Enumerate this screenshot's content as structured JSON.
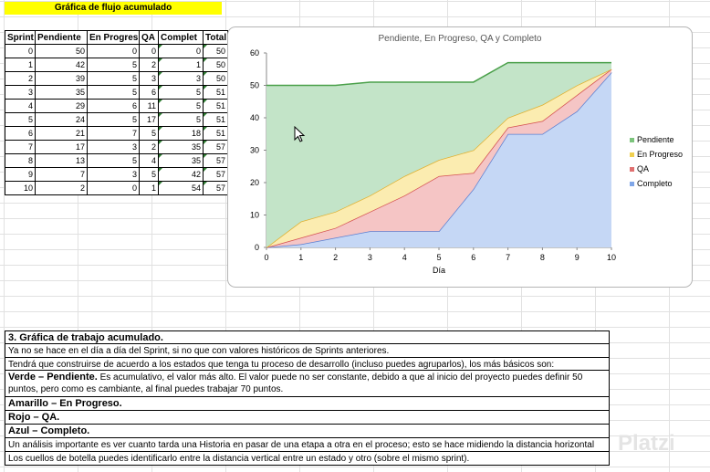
{
  "sheet_title": "Gráfica de flujo acumulado",
  "table": {
    "headers": [
      "Sprint",
      "Pendiente",
      "En Progres",
      "QA",
      "Complet",
      "Total"
    ],
    "rows": [
      [
        "0",
        "50",
        "0",
        "0",
        "0",
        "50"
      ],
      [
        "1",
        "42",
        "5",
        "2",
        "1",
        "50"
      ],
      [
        "2",
        "39",
        "5",
        "3",
        "3",
        "50"
      ],
      [
        "3",
        "35",
        "5",
        "6",
        "5",
        "51"
      ],
      [
        "4",
        "29",
        "6",
        "11",
        "5",
        "51"
      ],
      [
        "5",
        "24",
        "5",
        "17",
        "5",
        "51"
      ],
      [
        "6",
        "21",
        "7",
        "5",
        "18",
        "51"
      ],
      [
        "7",
        "17",
        "3",
        "2",
        "35",
        "57"
      ],
      [
        "8",
        "13",
        "5",
        "4",
        "35",
        "57"
      ],
      [
        "9",
        "7",
        "3",
        "5",
        "42",
        "57"
      ],
      [
        "10",
        "2",
        "0",
        "1",
        "54",
        "57"
      ]
    ]
  },
  "chart_data": {
    "type": "area",
    "title": "Pendiente, En Progreso, QA y Completo",
    "xlabel": "Día",
    "ylabel": "",
    "x": [
      0,
      1,
      2,
      3,
      4,
      5,
      6,
      7,
      8,
      9,
      10
    ],
    "ylim": [
      0,
      60
    ],
    "yticks": [
      "0",
      "10",
      "20",
      "30",
      "40",
      "50",
      "60"
    ],
    "xticks": [
      "0",
      "1",
      "2",
      "3",
      "4",
      "5",
      "6",
      "7",
      "8",
      "9",
      "10"
    ],
    "stacked": true,
    "legend_position": "right",
    "series": [
      {
        "name": "Completo",
        "color": "#c5d7f5",
        "line": "#5b7fd1",
        "values": [
          0,
          1,
          3,
          5,
          5,
          5,
          18,
          35,
          35,
          42,
          54
        ]
      },
      {
        "name": "QA",
        "color": "#f5c5c5",
        "line": "#d45050",
        "values": [
          0,
          2,
          3,
          6,
          11,
          17,
          5,
          2,
          4,
          5,
          1
        ]
      },
      {
        "name": "En Progreso",
        "color": "#fbecb0",
        "line": "#e0b030",
        "values": [
          0,
          5,
          5,
          5,
          6,
          5,
          7,
          3,
          5,
          3,
          0
        ]
      },
      {
        "name": "Pendiente",
        "color": "#c3e4c8",
        "line": "#4aa04a",
        "values": [
          50,
          42,
          39,
          35,
          29,
          24,
          21,
          17,
          13,
          7,
          2
        ]
      }
    ]
  },
  "legend": {
    "items": [
      {
        "label": "Pendiente",
        "color": "#7cc47c"
      },
      {
        "label": "En Progreso",
        "color": "#f0d050"
      },
      {
        "label": "QA",
        "color": "#e07070"
      },
      {
        "label": "Completo",
        "color": "#7fa6e8"
      }
    ]
  },
  "section": {
    "heading": "3. Gráfica de trabajo acumulado.",
    "line1": "Ya no se hace en el día a día del Sprint, si no que con valores históricos de Sprints anteriores.",
    "line2": "Tendrá que construirse de acuerdo a los estados que tenga tu proceso de desarrollo (incluso puedes agruparlos), los más básicos son:",
    "verde_title": "Verde – Pendiente.",
    "verde_text": " Es acumulativo, el valor más alto. El valor puede no ser constante, debido a que al inicio del proyecto puedes definir 50 puntos, pero como es cambiante, al final puedes trabajar 70 puntos.",
    "amarillo": "Amarillo – En Progreso.",
    "rojo": "Rojo – QA.",
    "azul": "Azul – Completo.",
    "line3": "Un análisis importante es ver cuanto tarda una Historia en pasar de una etapa a otra en el proceso; esto se hace midiendo la distancia horizontal",
    "line4": "Los cuellos de botella puedes identificarlo entre la distancia vertical entre un estado y otro (sobre el mismo sprint)."
  },
  "watermark": "Platzi"
}
